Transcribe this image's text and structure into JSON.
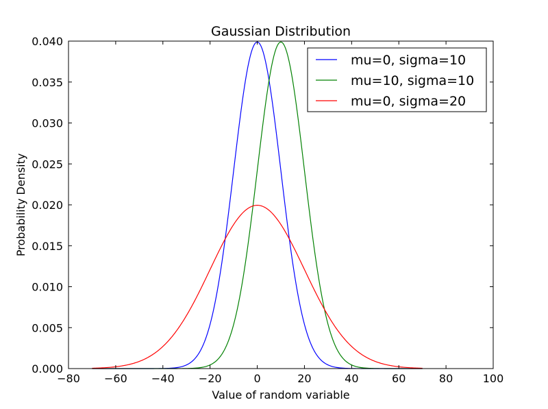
{
  "chart_data": {
    "type": "line",
    "title": "Gaussian Distribution",
    "xlabel": "Value of random variable",
    "ylabel": "Probability Density",
    "xlim": [
      -80,
      100
    ],
    "ylim": [
      0,
      0.04
    ],
    "x_ticks": [
      "−80",
      "−60",
      "−40",
      "−20",
      "0",
      "20",
      "40",
      "60",
      "80",
      "100"
    ],
    "x_tick_values": [
      -80,
      -60,
      -40,
      -20,
      0,
      20,
      40,
      60,
      80,
      100
    ],
    "y_ticks": [
      "0.000",
      "0.005",
      "0.010",
      "0.015",
      "0.020",
      "0.025",
      "0.030",
      "0.035",
      "0.040"
    ],
    "y_tick_values": [
      0,
      0.005,
      0.01,
      0.015,
      0.02,
      0.025,
      0.03,
      0.035,
      0.04
    ],
    "x_domain": [
      -70,
      70
    ],
    "grid": false,
    "legend_position": "top-right",
    "series": [
      {
        "name": "mu=0, sigma=10",
        "mu": 0,
        "sigma": 10,
        "color": "#0000ff"
      },
      {
        "name": "mu=10, sigma=10",
        "mu": 10,
        "sigma": 10,
        "color": "#008000"
      },
      {
        "name": "mu=0, sigma=20",
        "mu": 0,
        "sigma": 20,
        "color": "#ff0000"
      }
    ]
  }
}
